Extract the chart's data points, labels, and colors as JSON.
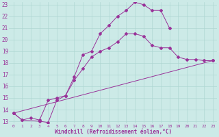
{
  "xlabel": "Windchill (Refroidissement éolien,°C)",
  "bg_color": "#cceae7",
  "grid_color": "#aed6d2",
  "line_color": "#993399",
  "xlim": [
    -0.5,
    23.5
  ],
  "ylim": [
    12.8,
    23.2
  ],
  "xticks": [
    0,
    1,
    2,
    3,
    4,
    5,
    6,
    7,
    8,
    9,
    10,
    11,
    12,
    13,
    14,
    15,
    16,
    17,
    18,
    19,
    20,
    21,
    22,
    23
  ],
  "yticks": [
    13,
    14,
    15,
    16,
    17,
    18,
    19,
    20,
    21,
    22,
    23
  ],
  "line1_x": [
    0,
    1,
    2,
    3,
    4,
    5,
    6,
    7,
    8,
    9,
    10,
    11,
    12,
    13,
    14,
    15,
    16,
    17,
    18,
    19,
    20,
    21,
    22,
    23
  ],
  "line1_y": [
    13.7,
    13.1,
    13.3,
    13.1,
    14.8,
    15.0,
    15.2,
    16.5,
    17.5,
    18.5,
    19.0,
    19.3,
    19.8,
    20.5,
    20.5,
    20.3,
    19.5,
    19.3,
    19.3,
    18.5,
    18.3,
    18.3,
    18.2,
    18.2
  ],
  "line2_x": [
    0,
    1,
    3,
    4,
    5,
    6,
    7,
    8,
    9,
    10,
    11,
    12,
    13,
    14,
    15,
    16,
    17,
    18
  ],
  "line2_y": [
    13.7,
    13.1,
    13.0,
    12.9,
    14.8,
    15.2,
    16.8,
    18.7,
    19.0,
    20.5,
    21.2,
    22.0,
    22.5,
    23.2,
    23.0,
    22.5,
    22.5,
    21.0
  ],
  "line3_x": [
    0,
    23
  ],
  "line3_y": [
    13.7,
    18.2
  ]
}
